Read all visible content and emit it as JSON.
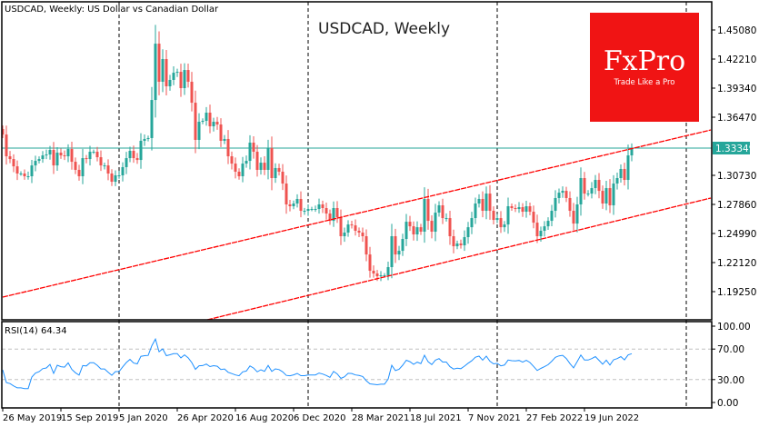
{
  "chart_data": {
    "type": "candlestick",
    "header": "USDCAD, Weekly:  US Dollar vs Canadian Dollar",
    "title": "USDCAD, Weekly",
    "symbol": "USDCAD",
    "timeframe": "Weekly",
    "colors": {
      "up": "#26a69a",
      "down": "#ef5350",
      "trendline": "#ff0000",
      "bid_line": "#26a69a",
      "rsi": "#1e90ff",
      "logo": "#f01414"
    },
    "first_open": 1.353,
    "closes": [
      1.3476,
      1.3261,
      1.3234,
      1.3162,
      1.3091,
      1.3091,
      1.3064,
      1.3064,
      1.3171,
      1.3216,
      1.3234,
      1.327,
      1.3279,
      1.3324,
      1.3171,
      1.3297,
      1.327,
      1.3261,
      1.3333,
      1.3207,
      1.3127,
      1.3064,
      1.3243,
      1.3234,
      1.3306,
      1.3306,
      1.3252,
      1.3171,
      1.3171,
      1.3091,
      1.301,
      1.3073,
      1.3073,
      1.3154,
      1.3243,
      1.3315,
      1.3243,
      1.3225,
      1.3414,
      1.3432,
      1.3441,
      1.3817,
      1.4373,
      1.3997,
      1.4221,
      1.3952,
      1.4015,
      1.4086,
      1.4095,
      1.3934,
      1.4113,
      1.3997,
      1.379,
      1.3423,
      1.3602,
      1.3611,
      1.3692,
      1.3557,
      1.3602,
      1.3575,
      1.3414,
      1.3432,
      1.3261,
      1.3189,
      1.3109,
      1.3064,
      1.3189,
      1.3216,
      1.3396,
      1.3306,
      1.3127,
      1.3198,
      1.3127,
      1.3342,
      1.3046,
      1.3145,
      1.3109,
      1.2992,
      1.2786,
      1.2768,
      1.2795,
      1.284,
      1.2723,
      1.2723,
      1.2741,
      1.2741,
      1.2741,
      1.2786,
      1.275,
      1.2696,
      1.2624,
      1.275,
      1.266,
      1.2472,
      1.2508,
      1.2588,
      1.2579,
      1.2526,
      1.2508,
      1.2472,
      1.2292,
      1.2131,
      1.2104,
      1.2077,
      1.2086,
      1.2086,
      1.2167,
      1.2472,
      1.2292,
      1.2328,
      1.2445,
      1.2615,
      1.257,
      1.249,
      1.2561,
      1.2517,
      1.284,
      1.2624,
      1.2517,
      1.2705,
      1.2777,
      1.2651,
      1.2651,
      1.2472,
      1.2373,
      1.24,
      1.2382,
      1.2463,
      1.2561,
      1.2651,
      1.2795,
      1.284,
      1.2723,
      1.2893,
      1.2723,
      1.2633,
      1.2651,
      1.2561,
      1.2588,
      1.2768,
      1.275,
      1.2741,
      1.2759,
      1.2714,
      1.2768,
      1.2714,
      1.2606,
      1.2472,
      1.2526,
      1.257,
      1.2624,
      1.2723,
      1.2849,
      1.2902,
      1.292,
      1.2849,
      1.2723,
      1.2597,
      1.2786,
      1.3046,
      1.2893,
      1.2893,
      1.2947,
      1.3028,
      1.292,
      1.2795,
      1.2947,
      1.2777,
      1.2992,
      1.3046,
      1.3136,
      1.3028,
      1.327,
      1.3342
    ],
    "ylim": [
      1.18,
      1.4804
    ],
    "y_ticks": [
      "1.45080",
      "1.42210",
      "1.39340",
      "1.36470",
      "1.30730",
      "1.27860",
      "1.24990",
      "1.22120",
      "1.19250"
    ],
    "current_price": "1.33349",
    "x_ticks": [
      "26 May 2019",
      "15 Sep 2019",
      "5 Jan 2020",
      "26 Apr 2020",
      "16 Aug 2020",
      "6 Dec 2020",
      "28 Mar 2021",
      "18 Jul 2021",
      "7 Nov 2021",
      "27 Feb 2022",
      "19 Jun 2022"
    ],
    "x_tick_every_weeks": 16,
    "period_separators_week_index": [
      32,
      84,
      136,
      188
    ],
    "trendlines": [
      {
        "name": "upper",
        "points": [
          [
            0,
            1.1871
          ],
          [
            194.75,
            1.3521
          ]
        ]
      },
      {
        "name": "lower",
        "points": [
          [
            56.25,
            1.1647
          ],
          [
            194.75,
            1.2849
          ]
        ]
      }
    ],
    "rsi": {
      "label": "RSI(14) 64.34",
      "period": 14,
      "last_value": 64.34,
      "ylim": [
        0,
        100
      ],
      "levels": [
        30,
        70
      ],
      "y_ticks": [
        "100.00",
        "70.00",
        "30.00",
        "0.00"
      ]
    }
  },
  "logo": {
    "brand": "FxPro",
    "tagline": "Trade Like a Pro"
  }
}
